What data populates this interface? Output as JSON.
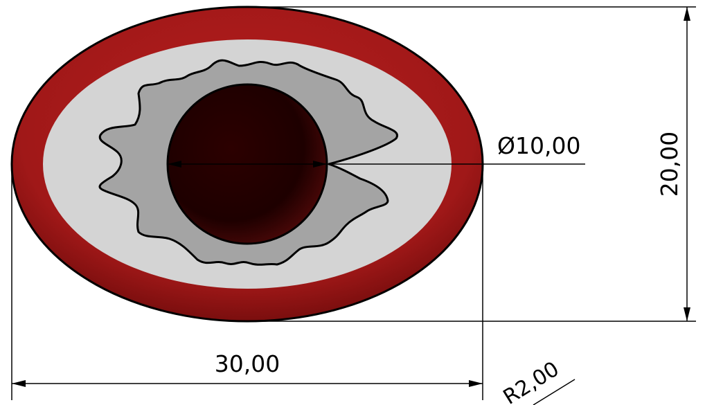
{
  "dimensions": {
    "diameter": "Ø10,00",
    "height": "20,00",
    "width": "30,00",
    "radius": "R2,00"
  },
  "colors": {
    "outer_ring": "#a01818",
    "outer_ring_dark": "#6e0c0c",
    "inner_field": "#d4d4d4",
    "gear_fill": "#a4a4a4",
    "hole_fill": "#2a0000",
    "line": "#000000",
    "background": "#ffffff"
  }
}
